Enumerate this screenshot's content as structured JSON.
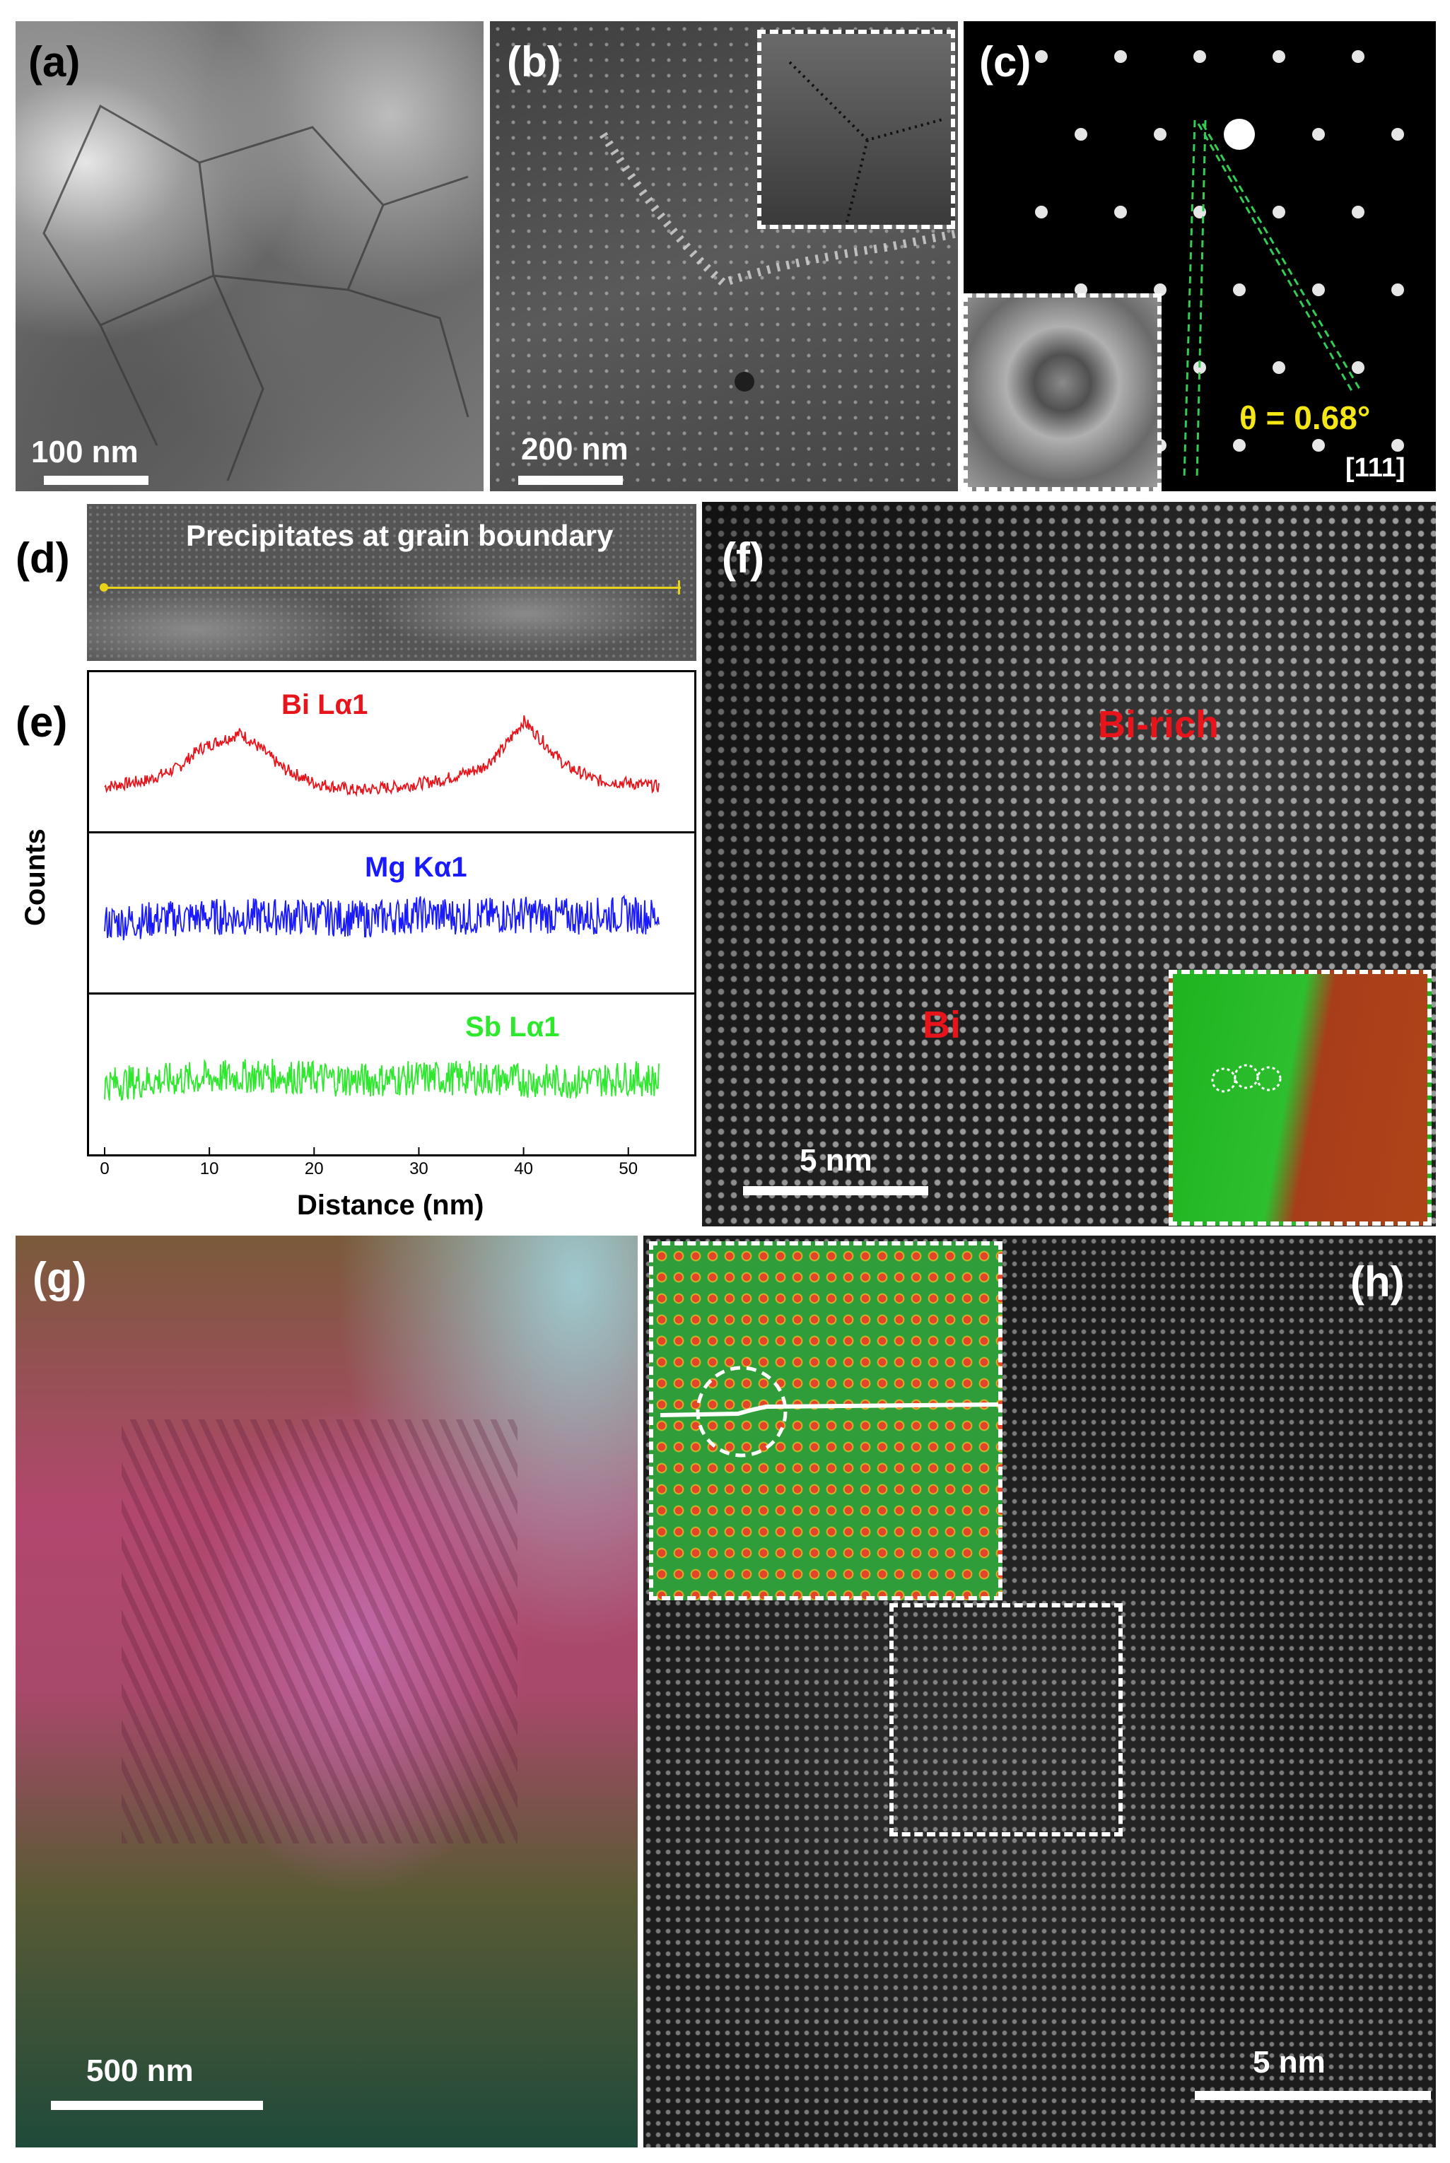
{
  "figure": {
    "panels": {
      "a": {
        "label": "(a)",
        "scale_bar": "100 nm"
      },
      "b": {
        "label": "(b)",
        "scale_bar": "200 nm"
      },
      "c": {
        "label": "(c)",
        "angle": "θ = 0.68°",
        "zone_axis": "[111]"
      },
      "d": {
        "label": "(d)",
        "title": "Precipitates at grain boundary"
      },
      "e": {
        "label": "(e)"
      },
      "f": {
        "label": "(f)",
        "region_rich": "Bi-rich",
        "region_bi": "Bi",
        "scale_bar": "5 nm"
      },
      "g": {
        "label": "(g)",
        "scale_bar": "500 nm"
      },
      "h": {
        "label": "(h)",
        "scale_bar": "5 nm"
      }
    },
    "colors": {
      "bi": "#e8141c",
      "mg": "#1a1aff",
      "sb": "#2ee82e",
      "angle": "#f5e616",
      "line_profile": "#e6d31a"
    }
  },
  "chart_data": {
    "type": "line",
    "xlabel": "Distance (nm)",
    "ylabel": "Counts",
    "xlim": [
      0,
      54
    ],
    "x_ticks": [
      "0",
      "10",
      "20",
      "30",
      "40",
      "50"
    ],
    "series": [
      {
        "name": "Bi Lα1",
        "color": "#e8141c",
        "x": [
          0,
          4,
          7,
          9,
          11,
          13,
          15,
          17,
          20,
          24,
          28,
          32,
          36,
          38,
          40,
          42,
          44,
          47,
          50,
          53
        ],
        "y": [
          0.25,
          0.3,
          0.4,
          0.55,
          0.62,
          0.68,
          0.55,
          0.4,
          0.28,
          0.22,
          0.25,
          0.3,
          0.4,
          0.55,
          0.78,
          0.6,
          0.42,
          0.3,
          0.28,
          0.25
        ]
      },
      {
        "name": "Mg Kα1",
        "color": "#1a1aff",
        "x": [
          0,
          5,
          10,
          15,
          20,
          25,
          30,
          35,
          40,
          45,
          50,
          53
        ],
        "y": [
          0.45,
          0.48,
          0.5,
          0.5,
          0.5,
          0.48,
          0.52,
          0.5,
          0.52,
          0.5,
          0.52,
          0.5
        ]
      },
      {
        "name": "Sb Lα1",
        "color": "#2ee82e",
        "x": [
          0,
          5,
          10,
          15,
          20,
          25,
          30,
          35,
          40,
          45,
          50,
          53
        ],
        "y": [
          0.45,
          0.48,
          0.5,
          0.52,
          0.5,
          0.48,
          0.5,
          0.5,
          0.48,
          0.47,
          0.5,
          0.48
        ]
      }
    ]
  }
}
